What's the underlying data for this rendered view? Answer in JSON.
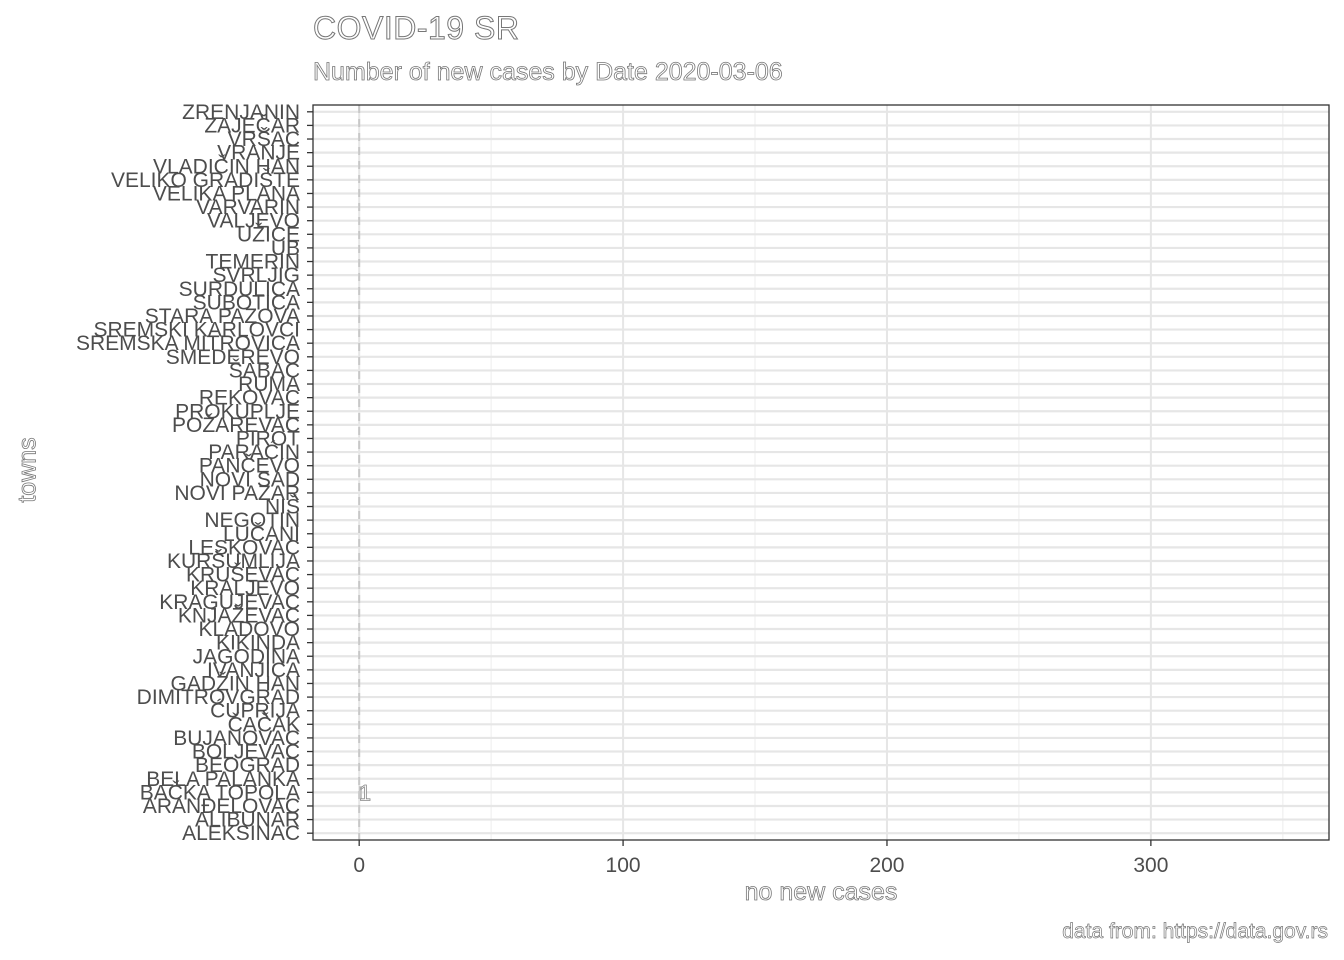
{
  "chart_data": {
    "type": "bar",
    "title": "COVID-19 SR",
    "subtitle": "Number of new cases by Date 2020-03-06",
    "xlabel": "no new cases",
    "ylabel": "towns",
    "caption": "data from: https://data.gov.rs",
    "orientation": "horizontal",
    "xlim": [
      -17.5,
      367.5
    ],
    "x_ticks": [
      0,
      100,
      200,
      300
    ],
    "grid": true,
    "categories": [
      "ALEKSINAC",
      "ALIBUNAR",
      "ARANĐELOVAC",
      "BAČKA TOPOLA",
      "BELA PALANKA",
      "BEOGRAD",
      "BOLJEVAC",
      "BUJANOVAC",
      "ČAČAK",
      "ĆUPRIJA",
      "DIMITROVGRAD",
      "GADŽIN HAN",
      "IVANJICA",
      "JAGODINA",
      "KIKINDA",
      "KLADOVO",
      "KNJAŽEVAC",
      "KRAGUJEVAC",
      "KRALJEVO",
      "KRUŠEVAC",
      "KURŠUMLIJA",
      "LESKOVAC",
      "LUČANI",
      "NEGOTIN",
      "NIŠ",
      "NOVI PAZAR",
      "NOVI SAD",
      "PANČEVO",
      "PARAĆIN",
      "PIROT",
      "POŽAREVAC",
      "PROKUPLJE",
      "REKOVAC",
      "RUMA",
      "ŠABAC",
      "SMEDEREVO",
      "SREMSKA MITROVICA",
      "SREMSKI KARLOVCI",
      "STARA PAZOVA",
      "SUBOTICA",
      "SURDULICA",
      "SVRLJIG",
      "TEMERIN",
      "UB",
      "UŽICE",
      "VALJEVO",
      "VARVARIN",
      "VELIKA PLANA",
      "VELIKO GRADIŠTE",
      "VLADIČIN HAN",
      "VRANJE",
      "VRŠAC",
      "ZAJEČAR",
      "ZRENJANIN"
    ],
    "values": [
      0,
      0,
      0,
      1,
      0,
      0,
      0,
      0,
      0,
      0,
      0,
      0,
      0,
      0,
      0,
      0,
      0,
      0,
      0,
      0,
      0,
      0,
      0,
      0,
      0,
      0,
      0,
      0,
      0,
      0,
      0,
      0,
      0,
      0,
      0,
      0,
      0,
      0,
      0,
      0,
      0,
      0,
      0,
      0,
      0,
      0,
      0,
      0,
      0,
      0,
      0,
      0,
      0,
      0
    ],
    "data_labels": [
      {
        "category": "BAČKA TOPOLA",
        "text": "1"
      }
    ],
    "reference_line": {
      "x": 0,
      "style": "dashed"
    }
  }
}
